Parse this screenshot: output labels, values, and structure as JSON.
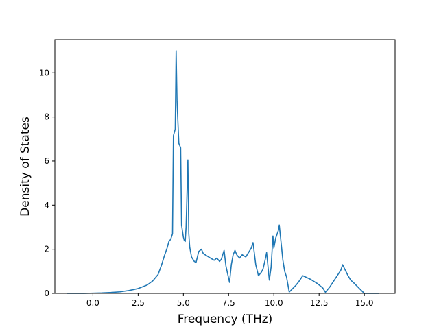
{
  "chart_data": {
    "type": "line",
    "title": "",
    "xlabel": "Frequency (THz)",
    "ylabel": "Density of States",
    "xlim": [
      -2.1,
      16.7
    ],
    "ylim": [
      0,
      11.5
    ],
    "grid": false,
    "line_color": "#1f77b4",
    "x_ticks": [
      0.0,
      2.5,
      5.0,
      7.5,
      10.0,
      12.5,
      15.0
    ],
    "x_tick_labels": [
      "0.0",
      "2.5",
      "5.0",
      "7.5",
      "10.0",
      "12.5",
      "15.0"
    ],
    "y_ticks": [
      0,
      2,
      4,
      6,
      8,
      10
    ],
    "y_tick_labels": [
      "0",
      "2",
      "4",
      "6",
      "8",
      "10"
    ],
    "series": [
      {
        "x": [
          -1.45,
          -0.5,
          0.0,
          0.5,
          1.0,
          1.5,
          2.0,
          2.5,
          3.0,
          3.3,
          3.6,
          3.8,
          3.95,
          4.1,
          4.2,
          4.3,
          4.4,
          4.45,
          4.55,
          4.6,
          4.65,
          4.75,
          4.85,
          4.9,
          5.0,
          5.05,
          5.1,
          5.15,
          5.25,
          5.3,
          5.35,
          5.45,
          5.6,
          5.7,
          5.85,
          6.0,
          6.1,
          6.3,
          6.5,
          6.7,
          6.85,
          7.0,
          7.1,
          7.25,
          7.35,
          7.55,
          7.65,
          7.75,
          7.85,
          7.95,
          8.1,
          8.25,
          8.35,
          8.45,
          8.6,
          8.75,
          8.85,
          9.0,
          9.15,
          9.3,
          9.4,
          9.5,
          9.6,
          9.75,
          9.85,
          9.95,
          10.0,
          10.1,
          10.25,
          10.3,
          10.5,
          10.6,
          10.7,
          10.85,
          11.2,
          11.35,
          11.6,
          12.0,
          12.4,
          12.7,
          12.85,
          13.1,
          13.5,
          13.7,
          13.8,
          14.1,
          14.25,
          14.45,
          15.0,
          15.8
        ],
        "y": [
          0.0,
          0.0,
          0.01,
          0.02,
          0.04,
          0.07,
          0.13,
          0.22,
          0.38,
          0.56,
          0.85,
          1.3,
          1.7,
          2.05,
          2.35,
          2.45,
          2.7,
          7.15,
          7.45,
          11.0,
          8.7,
          6.8,
          6.6,
          3.1,
          2.55,
          2.4,
          2.35,
          3.0,
          6.05,
          2.7,
          2.1,
          1.65,
          1.45,
          1.4,
          1.9,
          2.0,
          1.8,
          1.7,
          1.6,
          1.5,
          1.6,
          1.45,
          1.55,
          1.95,
          1.25,
          0.5,
          1.3,
          1.75,
          1.95,
          1.75,
          1.6,
          1.75,
          1.7,
          1.65,
          1.85,
          2.05,
          2.3,
          1.3,
          0.8,
          0.95,
          1.1,
          1.45,
          1.85,
          0.6,
          1.2,
          2.6,
          2.05,
          2.5,
          2.85,
          3.1,
          1.5,
          1.0,
          0.75,
          0.06,
          0.35,
          0.5,
          0.8,
          0.65,
          0.45,
          0.25,
          0.05,
          0.3,
          0.8,
          1.05,
          1.3,
          0.8,
          0.6,
          0.45,
          0.0,
          0.0
        ]
      }
    ]
  }
}
